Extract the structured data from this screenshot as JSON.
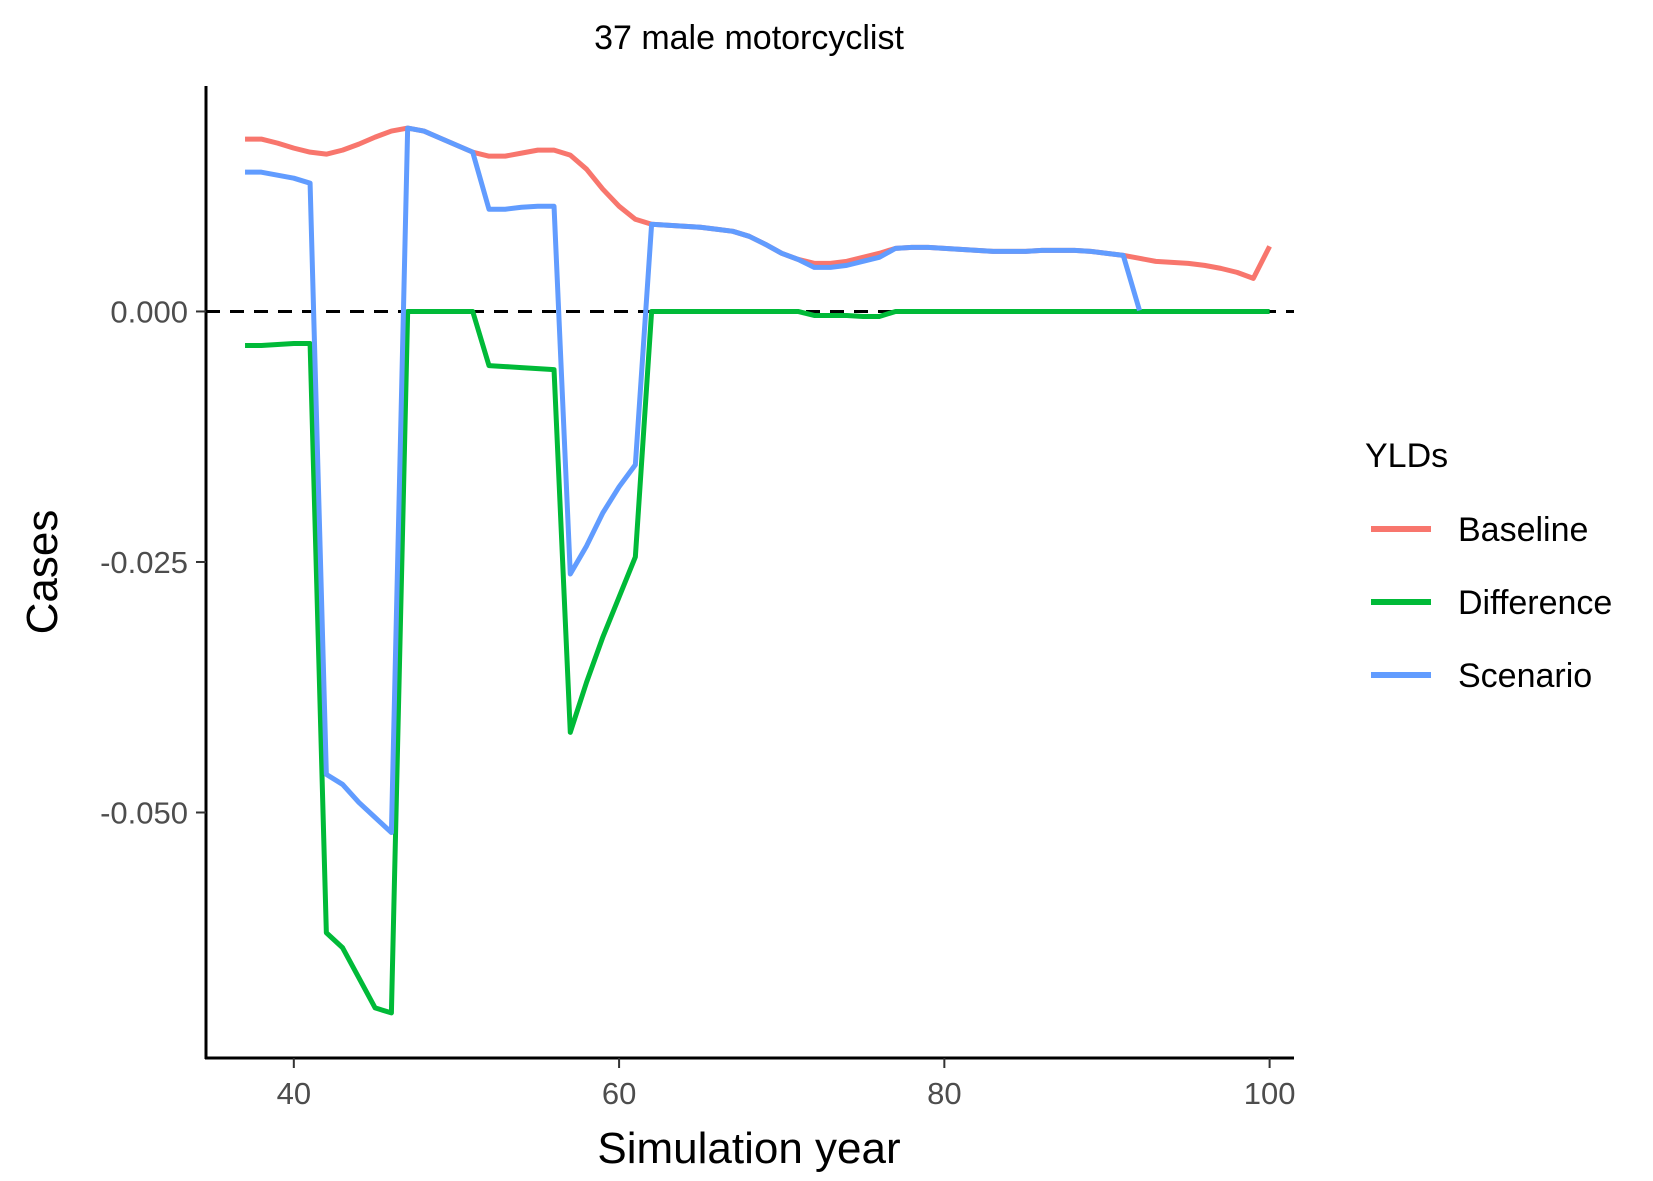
{
  "chart_data": {
    "type": "line",
    "title": "37 male motorcyclist",
    "xlabel": "Simulation year",
    "ylabel": "Cases",
    "xlim": [
      34.6,
      101.5
    ],
    "ylim": [
      -0.0745,
      0.0225
    ],
    "x_ticks": [
      40,
      60,
      80,
      100
    ],
    "x_tick_labels": [
      "40",
      "60",
      "80",
      "100"
    ],
    "y_ticks": [
      0.0,
      -0.025,
      -0.05
    ],
    "y_tick_labels": [
      "0.000",
      "-0.025",
      "-0.050"
    ],
    "reference_line": {
      "y": 0,
      "style": "dashed",
      "color": "#000000"
    },
    "grid": false,
    "legend": {
      "title": "YLDs",
      "placement": "right"
    },
    "series": [
      {
        "name": "Baseline",
        "color": "#F8766D",
        "points": [
          [
            37,
            0.0172
          ],
          [
            38,
            0.0172
          ],
          [
            39,
            0.0168
          ],
          [
            40,
            0.0163
          ],
          [
            41,
            0.0159
          ],
          [
            42,
            0.0157
          ],
          [
            43,
            0.0161
          ],
          [
            44,
            0.0167
          ],
          [
            45,
            0.0174
          ],
          [
            46,
            0.018
          ],
          [
            47,
            0.0183
          ],
          [
            48,
            0.018
          ],
          [
            49,
            0.0173
          ],
          [
            50,
            0.0166
          ],
          [
            51,
            0.0159
          ],
          [
            52,
            0.0155
          ],
          [
            53,
            0.0155
          ],
          [
            54,
            0.0158
          ],
          [
            55,
            0.0161
          ],
          [
            56,
            0.0161
          ],
          [
            57,
            0.0156
          ],
          [
            58,
            0.0142
          ],
          [
            59,
            0.0122
          ],
          [
            60,
            0.0105
          ],
          [
            61,
            0.0092
          ],
          [
            62,
            0.0087
          ],
          [
            63,
            0.0086
          ],
          [
            64,
            0.0085
          ],
          [
            65,
            0.0084
          ],
          [
            66,
            0.0082
          ],
          [
            67,
            0.008
          ],
          [
            68,
            0.0075
          ],
          [
            69,
            0.0067
          ],
          [
            70,
            0.0058
          ],
          [
            71,
            0.0052
          ],
          [
            72,
            0.0048
          ],
          [
            73,
            0.0048
          ],
          [
            74,
            0.005
          ],
          [
            75,
            0.0054
          ],
          [
            76,
            0.0058
          ],
          [
            77,
            0.0063
          ],
          [
            78,
            0.0064
          ],
          [
            79,
            0.0064
          ],
          [
            80,
            0.0063
          ],
          [
            81,
            0.0062
          ],
          [
            82,
            0.0061
          ],
          [
            83,
            0.006
          ],
          [
            84,
            0.006
          ],
          [
            85,
            0.006
          ],
          [
            86,
            0.0061
          ],
          [
            87,
            0.0061
          ],
          [
            88,
            0.0061
          ],
          [
            89,
            0.006
          ],
          [
            90,
            0.0058
          ],
          [
            91,
            0.0056
          ],
          [
            92,
            0.0053
          ],
          [
            93,
            0.005
          ],
          [
            94,
            0.0049
          ],
          [
            95,
            0.0048
          ],
          [
            96,
            0.0046
          ],
          [
            97,
            0.0043
          ],
          [
            98,
            0.0039
          ],
          [
            99,
            0.0033
          ],
          [
            100,
            0.0065
          ]
        ]
      },
      {
        "name": "Difference",
        "color": "#00BA38",
        "points": [
          [
            37,
            -0.0034
          ],
          [
            38,
            -0.0034
          ],
          [
            39,
            -0.0033
          ],
          [
            40,
            -0.0032
          ],
          [
            41,
            -0.0032
          ],
          [
            42,
            -0.062
          ],
          [
            43,
            -0.0635
          ],
          [
            44,
            -0.0665
          ],
          [
            45,
            -0.0695
          ],
          [
            46,
            -0.07
          ],
          [
            47,
            0
          ],
          [
            48,
            0
          ],
          [
            49,
            0
          ],
          [
            50,
            0
          ],
          [
            51,
            0
          ],
          [
            52,
            -0.0054
          ],
          [
            53,
            -0.0055
          ],
          [
            54,
            -0.0056
          ],
          [
            55,
            -0.0057
          ],
          [
            56,
            -0.0058
          ],
          [
            57,
            -0.042
          ],
          [
            58,
            -0.037
          ],
          [
            59,
            -0.0325
          ],
          [
            60,
            -0.0285
          ],
          [
            61,
            -0.0245
          ],
          [
            62,
            0
          ],
          [
            63,
            0
          ],
          [
            64,
            0
          ],
          [
            65,
            0
          ],
          [
            66,
            0
          ],
          [
            67,
            0
          ],
          [
            68,
            0
          ],
          [
            69,
            0
          ],
          [
            70,
            0
          ],
          [
            71,
            0
          ],
          [
            72,
            -0.0004
          ],
          [
            73,
            -0.0004
          ],
          [
            74,
            -0.0004
          ],
          [
            75,
            -0.0005
          ],
          [
            76,
            -0.0005
          ],
          [
            77,
            0
          ],
          [
            78,
            0
          ],
          [
            79,
            0
          ],
          [
            80,
            0
          ],
          [
            81,
            0
          ],
          [
            82,
            0
          ],
          [
            83,
            0
          ],
          [
            84,
            0
          ],
          [
            85,
            0
          ],
          [
            86,
            0
          ],
          [
            87,
            0
          ],
          [
            88,
            0
          ],
          [
            89,
            0
          ],
          [
            90,
            0
          ],
          [
            91,
            0
          ],
          [
            92,
            0
          ],
          [
            93,
            0
          ],
          [
            94,
            0
          ],
          [
            95,
            0
          ],
          [
            96,
            0
          ],
          [
            97,
            0
          ],
          [
            98,
            0
          ],
          [
            99,
            0
          ],
          [
            100,
            0
          ]
        ]
      },
      {
        "name": "Scenario",
        "color": "#619CFF",
        "points": [
          [
            37,
            0.0139
          ],
          [
            38,
            0.0139
          ],
          [
            39,
            0.0136
          ],
          [
            40,
            0.0133
          ],
          [
            41,
            0.0128
          ],
          [
            42,
            -0.0462
          ],
          [
            43,
            -0.0472
          ],
          [
            44,
            -0.049
          ],
          [
            45,
            -0.0505
          ],
          [
            46,
            -0.052
          ],
          [
            47,
            0.0183
          ],
          [
            48,
            0.018
          ],
          [
            49,
            0.0173
          ],
          [
            50,
            0.0166
          ],
          [
            51,
            0.0159
          ],
          [
            52,
            0.0102
          ],
          [
            53,
            0.0102
          ],
          [
            54,
            0.0104
          ],
          [
            55,
            0.0105
          ],
          [
            56,
            0.0105
          ],
          [
            57,
            -0.0262
          ],
          [
            58,
            -0.0234
          ],
          [
            59,
            -0.0201
          ],
          [
            60,
            -0.0175
          ],
          [
            61,
            -0.0153
          ],
          [
            62,
            0.0087
          ],
          [
            63,
            0.0086
          ],
          [
            64,
            0.0085
          ],
          [
            65,
            0.0084
          ],
          [
            66,
            0.0082
          ],
          [
            67,
            0.008
          ],
          [
            68,
            0.0075
          ],
          [
            69,
            0.0067
          ],
          [
            70,
            0.0058
          ],
          [
            71,
            0.0052
          ],
          [
            72,
            0.0044
          ],
          [
            73,
            0.0044
          ],
          [
            74,
            0.0046
          ],
          [
            75,
            0.005
          ],
          [
            76,
            0.0054
          ],
          [
            77,
            0.0063
          ],
          [
            78,
            0.0064
          ],
          [
            79,
            0.0064
          ],
          [
            80,
            0.0063
          ],
          [
            81,
            0.0062
          ],
          [
            82,
            0.0061
          ],
          [
            83,
            0.006
          ],
          [
            84,
            0.006
          ],
          [
            85,
            0.006
          ],
          [
            86,
            0.0061
          ],
          [
            87,
            0.0061
          ],
          [
            88,
            0.0061
          ],
          [
            89,
            0.006
          ],
          [
            90,
            0.0058
          ],
          [
            91,
            0.0056
          ],
          [
            92,
            0.0001
          ]
        ]
      }
    ]
  }
}
